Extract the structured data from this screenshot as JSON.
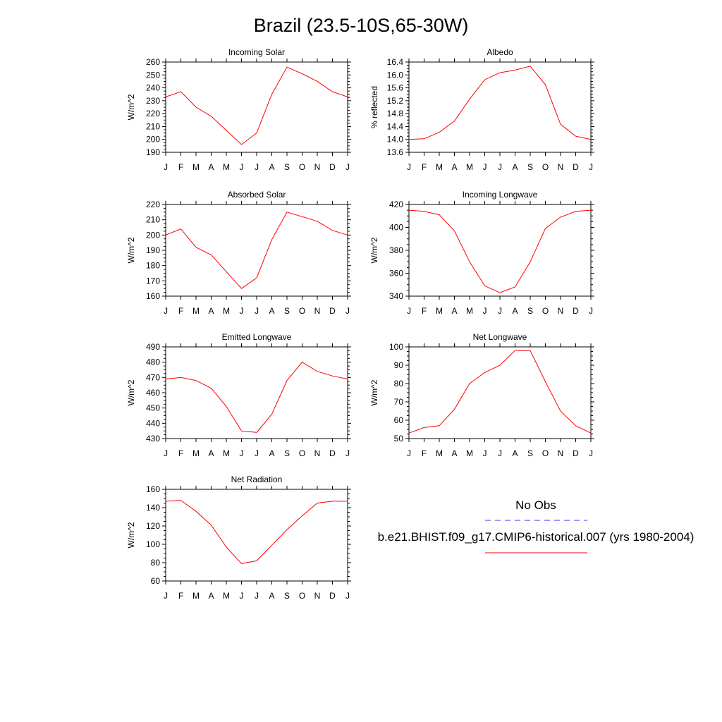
{
  "title": "Brazil (23.5-10S,65-30W)",
  "chart_data": [
    {
      "type": "line",
      "title": "Incoming Solar",
      "ylabel": "W/m^2",
      "categories": [
        "J",
        "F",
        "M",
        "A",
        "M",
        "J",
        "J",
        "A",
        "S",
        "O",
        "N",
        "D",
        "J"
      ],
      "ylim": [
        190,
        260
      ],
      "yticks": [
        "190",
        "200",
        "210",
        "220",
        "230",
        "240",
        "250",
        "260"
      ],
      "series": [
        {
          "color": "#ff0000",
          "values": [
            233,
            237,
            225,
            218,
            207,
            196,
            205,
            235,
            256,
            251,
            245,
            237,
            233
          ]
        }
      ]
    },
    {
      "type": "line",
      "title": "Albedo",
      "ylabel": "% reflected",
      "categories": [
        "J",
        "F",
        "M",
        "A",
        "M",
        "J",
        "J",
        "A",
        "S",
        "O",
        "N",
        "D",
        "J"
      ],
      "ylim": [
        13.6,
        16.4
      ],
      "yticks": [
        "13.6",
        "14.0",
        "14.4",
        "14.8",
        "15.2",
        "15.6",
        "16.0",
        "16.4"
      ],
      "series": [
        {
          "color": "#ff0000",
          "values": [
            14.0,
            14.02,
            14.22,
            14.57,
            15.25,
            15.85,
            16.07,
            16.15,
            16.27,
            15.7,
            14.47,
            14.1,
            14.0
          ]
        }
      ]
    },
    {
      "type": "line",
      "title": "Absorbed Solar",
      "ylabel": "W/m^2",
      "categories": [
        "J",
        "F",
        "M",
        "A",
        "M",
        "J",
        "J",
        "A",
        "S",
        "O",
        "N",
        "D",
        "J"
      ],
      "ylim": [
        160,
        220
      ],
      "yticks": [
        "160",
        "170",
        "180",
        "190",
        "200",
        "210",
        "220"
      ],
      "series": [
        {
          "color": "#ff0000",
          "values": [
            200,
            204,
            192,
            187,
            176,
            165,
            172,
            197,
            215,
            212,
            209,
            203,
            200
          ]
        }
      ]
    },
    {
      "type": "line",
      "title": "Incoming Longwave",
      "ylabel": "W/m^2",
      "categories": [
        "J",
        "F",
        "M",
        "A",
        "M",
        "J",
        "J",
        "A",
        "S",
        "O",
        "N",
        "D",
        "J"
      ],
      "ylim": [
        340,
        420
      ],
      "yticks": [
        "340",
        "360",
        "380",
        "400",
        "420"
      ],
      "series": [
        {
          "color": "#ff0000",
          "values": [
            415,
            414,
            411,
            397,
            370,
            349,
            343,
            348,
            370,
            399,
            409,
            414,
            415
          ]
        }
      ]
    },
    {
      "type": "line",
      "title": "Emitted Longwave",
      "ylabel": "W/m^2",
      "categories": [
        "J",
        "F",
        "M",
        "A",
        "M",
        "J",
        "J",
        "A",
        "S",
        "O",
        "N",
        "D",
        "J"
      ],
      "ylim": [
        430,
        490
      ],
      "yticks": [
        "430",
        "440",
        "450",
        "460",
        "470",
        "480",
        "490"
      ],
      "series": [
        {
          "color": "#ff0000",
          "values": [
            469,
            470,
            468,
            463,
            451,
            435,
            434,
            446,
            468,
            480,
            474,
            471,
            469
          ]
        }
      ]
    },
    {
      "type": "line",
      "title": "Net Longwave",
      "ylabel": "W/m^2",
      "categories": [
        "J",
        "F",
        "M",
        "A",
        "M",
        "J",
        "J",
        "A",
        "S",
        "O",
        "N",
        "D",
        "J"
      ],
      "ylim": [
        50,
        100
      ],
      "yticks": [
        "50",
        "60",
        "70",
        "80",
        "90",
        "100"
      ],
      "series": [
        {
          "color": "#ff0000",
          "values": [
            53,
            56,
            57,
            66,
            80,
            86,
            90,
            98,
            98,
            81,
            65,
            57,
            53
          ]
        }
      ]
    },
    {
      "type": "line",
      "title": "Net Radiation",
      "ylabel": "W/m^2",
      "categories": [
        "J",
        "F",
        "M",
        "A",
        "M",
        "J",
        "J",
        "A",
        "S",
        "O",
        "N",
        "D",
        "J"
      ],
      "ylim": [
        60,
        160
      ],
      "yticks": [
        "60",
        "80",
        "100",
        "120",
        "140",
        "160"
      ],
      "series": [
        {
          "color": "#ff0000",
          "values": [
            147,
            148,
            136,
            121,
            97,
            79,
            82,
            99,
            116,
            131,
            145,
            147,
            147
          ]
        }
      ]
    }
  ],
  "legend": {
    "items": [
      {
        "label": "No Obs",
        "color": "#3333ff",
        "dash": true
      },
      {
        "label": "b.e21.BHIST.f09_g17.CMIP6-historical.007 (yrs 1980-2004)",
        "color": "#ff0000",
        "dash": false
      }
    ]
  }
}
